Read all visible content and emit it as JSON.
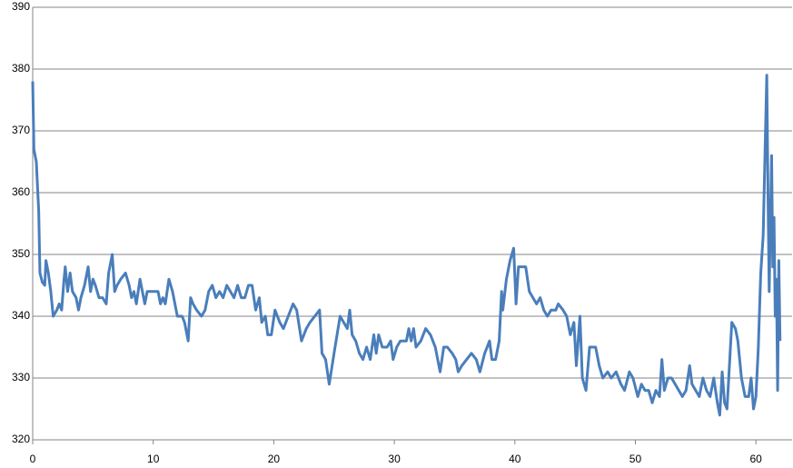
{
  "chart_data": {
    "type": "line",
    "x": [
      0,
      0.1,
      0.3,
      0.5,
      0.6,
      0.8,
      1.0,
      1.1,
      1.3,
      1.5,
      1.7,
      2.0,
      2.2,
      2.4,
      2.6,
      2.7,
      2.9,
      3.1,
      3.3,
      3.6,
      3.8,
      4.0,
      4.3,
      4.6,
      4.8,
      5.0,
      5.2,
      5.5,
      5.8,
      6.1,
      6.3,
      6.6,
      6.8,
      7.0,
      7.3,
      7.7,
      8.0,
      8.2,
      8.4,
      8.6,
      8.9,
      9.1,
      9.3,
      9.5,
      10.0,
      10.4,
      10.6,
      10.8,
      11.0,
      11.3,
      11.6,
      12.0,
      12.4,
      12.6,
      12.9,
      13.1,
      13.3,
      13.6,
      14.0,
      14.3,
      14.6,
      14.9,
      15.2,
      15.5,
      15.8,
      16.1,
      16.4,
      16.7,
      17.0,
      17.3,
      17.6,
      17.9,
      18.2,
      18.5,
      18.8,
      19.0,
      19.3,
      19.5,
      19.8,
      20.1,
      20.5,
      20.8,
      21.2,
      21.6,
      21.9,
      22.3,
      22.7,
      23.0,
      23.4,
      23.8,
      24.0,
      24.3,
      24.6,
      25.0,
      25.5,
      25.8,
      26.1,
      26.3,
      26.5,
      26.8,
      27.1,
      27.4,
      27.7,
      28.0,
      28.3,
      28.5,
      28.7,
      29.0,
      29.4,
      29.7,
      29.9,
      30.2,
      30.5,
      31.0,
      31.2,
      31.4,
      31.6,
      31.8,
      32.2,
      32.6,
      33.0,
      33.4,
      33.8,
      34.1,
      34.4,
      34.8,
      35.1,
      35.3,
      35.6,
      36.0,
      36.4,
      36.8,
      37.1,
      37.5,
      37.9,
      38.1,
      38.4,
      38.7,
      38.9,
      39.0,
      39.3,
      39.6,
      39.9,
      40.1,
      40.3,
      40.6,
      40.9,
      41.2,
      41.5,
      41.8,
      42.1,
      42.4,
      42.7,
      43.0,
      43.4,
      43.6,
      44.0,
      44.3,
      44.6,
      44.9,
      45.1,
      45.4,
      45.6,
      45.9,
      46.2,
      46.7,
      47.0,
      47.3,
      47.7,
      48.0,
      48.4,
      48.8,
      49.1,
      49.5,
      49.8,
      50.2,
      50.5,
      50.8,
      51.1,
      51.4,
      51.7,
      52.0,
      52.2,
      52.4,
      52.7,
      53.0,
      53.3,
      53.6,
      53.9,
      54.2,
      54.5,
      54.7,
      55.0,
      55.3,
      55.6,
      55.9,
      56.2,
      56.5,
      56.8,
      57.0,
      57.2,
      57.4,
      57.6,
      57.8,
      58.0,
      58.3,
      58.5,
      58.8,
      59.1,
      59.4,
      59.6,
      59.8,
      60.0,
      60.2,
      60.4,
      60.6,
      60.9,
      61.0,
      61.1,
      61.3,
      61.4,
      61.5,
      61.6,
      61.7,
      61.8,
      61.9,
      62.0
    ],
    "values": [
      378,
      367,
      365,
      357,
      347,
      345.5,
      345,
      349,
      347,
      344,
      340,
      341,
      342,
      341,
      346,
      348,
      344,
      347,
      344,
      343,
      341,
      343,
      345,
      348,
      344,
      346,
      345,
      343,
      343,
      342,
      347,
      350,
      344,
      345,
      346,
      347,
      345,
      343,
      344,
      342,
      346,
      344,
      342,
      344,
      344,
      344,
      342,
      343,
      342,
      346,
      344,
      340,
      340,
      339,
      336,
      343,
      342,
      341,
      340,
      341,
      344,
      345,
      343,
      344,
      343,
      345,
      344,
      343,
      345,
      343,
      343,
      345,
      345,
      341,
      343,
      339,
      340,
      337,
      337,
      341,
      339,
      338,
      340,
      342,
      341,
      336,
      338,
      339,
      340,
      341,
      334,
      333,
      329,
      334,
      340,
      339,
      338,
      341,
      337,
      336,
      334,
      333,
      335,
      333,
      337,
      334,
      337,
      335,
      335,
      336,
      333,
      335,
      336,
      336,
      338,
      336,
      338,
      335,
      336,
      338,
      337,
      335,
      331,
      335,
      335,
      334,
      333,
      331,
      332,
      333,
      334,
      333,
      331,
      334,
      336,
      333,
      333,
      336,
      344,
      341,
      346,
      349,
      351,
      342,
      348,
      348,
      348,
      344,
      343,
      342,
      343,
      341,
      340,
      341,
      341,
      342,
      341,
      340,
      337,
      339,
      332,
      340,
      330,
      328,
      335,
      335,
      332,
      330,
      331,
      330,
      331,
      329,
      328,
      331,
      330,
      327,
      329,
      328,
      328,
      326,
      328,
      327,
      333,
      328,
      330,
      330,
      329,
      328,
      327,
      328,
      332,
      329,
      328,
      327,
      330,
      328,
      327,
      330,
      326,
      324,
      331,
      326,
      325,
      332,
      339,
      338,
      336,
      330,
      327,
      327,
      330,
      325,
      327,
      335,
      347,
      353,
      379,
      360,
      344,
      366,
      348,
      356,
      340,
      346,
      328,
      349,
      336
    ],
    "color": "#4a7ebb",
    "xlim": [
      0,
      63
    ],
    "xticks": [
      0,
      10,
      20,
      30,
      40,
      50,
      60
    ],
    "ylim": [
      320,
      390
    ],
    "yticks": [
      320,
      330,
      340,
      350,
      360,
      370,
      380,
      390
    ],
    "grid": true
  }
}
